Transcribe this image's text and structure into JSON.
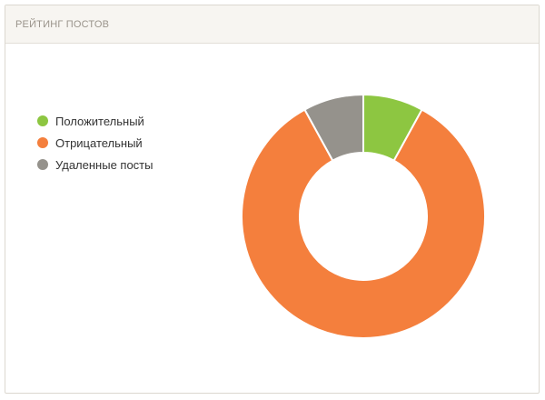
{
  "panel": {
    "title": "РЕЙТИНГ ПОСТОВ"
  },
  "chart_data": {
    "type": "pie",
    "title": "",
    "variant": "donut",
    "legend_position": "left",
    "slices": [
      {
        "label": "Положительный",
        "value": 8,
        "color": "#8dc641"
      },
      {
        "label": "Отрицательный",
        "value": 84,
        "color": "#f47f3d"
      },
      {
        "label": "Удаленные посты",
        "value": 8,
        "color": "#95928c"
      }
    ]
  }
}
